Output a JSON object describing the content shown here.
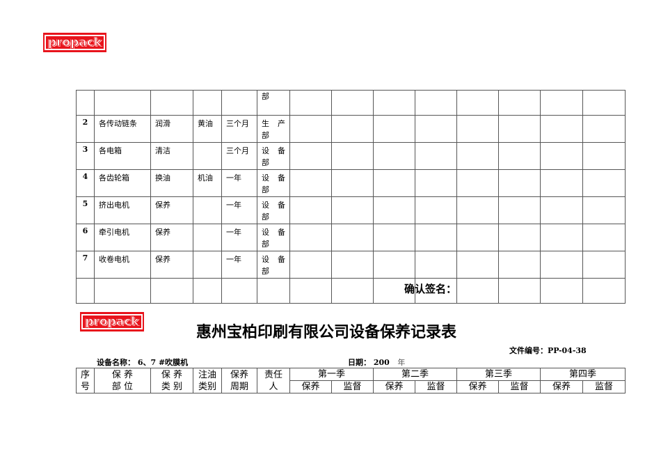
{
  "logo_text": "propack",
  "top_table": {
    "first_row_dept_tail": "部",
    "rows": [
      {
        "no": "2",
        "part": "各传动链条",
        "type": "润滑",
        "oil": "黄油",
        "period": "三个月",
        "dept_a": "生",
        "dept_b": "产",
        "dept_c": "部"
      },
      {
        "no": "3",
        "part": "各电箱",
        "type": "清洁",
        "oil": "",
        "period": "三个月",
        "dept_a": "设",
        "dept_b": "备",
        "dept_c": "部"
      },
      {
        "no": "4",
        "part": "各齿轮箱",
        "type": "换油",
        "oil": "机油",
        "period": "一年",
        "dept_a": "设",
        "dept_b": "备",
        "dept_c": "部"
      },
      {
        "no": "5",
        "part": "挤出电机",
        "type": "保养",
        "oil": "",
        "period": "一年",
        "dept_a": "设",
        "dept_b": "备",
        "dept_c": "部"
      },
      {
        "no": "6",
        "part": "牵引电机",
        "type": "保养",
        "oil": "",
        "period": "一年",
        "dept_a": "设",
        "dept_b": "备",
        "dept_c": "部"
      },
      {
        "no": "7",
        "part": "收卷电机",
        "type": "保养",
        "oil": "",
        "period": "一年",
        "dept_a": "设",
        "dept_b": "备",
        "dept_c": "部"
      }
    ]
  },
  "confirm_label": "确认签名：",
  "title": "惠州宝柏印刷有限公司设备保养记录表",
  "doc_no": "文件编号：PP-04-38",
  "equipment": "设备名称： 6、7 #吹膜机",
  "date_label": "日期：",
  "date_year": "200",
  "date_unit": "年",
  "header": {
    "no_a": "序",
    "no_b": "号",
    "part_a": "保 养",
    "part_b": "部 位",
    "type_a": "保 养",
    "type_b": "类 别",
    "oil_a": "注油",
    "oil_b": "类别",
    "period_a": "保养",
    "period_b": "周期",
    "resp_a": "责任",
    "resp_b": "人",
    "quarters": [
      "第一季",
      "第二季",
      "第三季",
      "第四季"
    ],
    "maint": "保养",
    "super": "监督"
  }
}
